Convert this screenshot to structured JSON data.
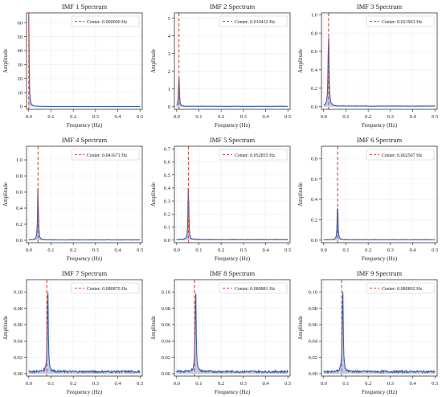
{
  "colors": {
    "spectrum_line": "#3b5fa8",
    "spectrum_fill": "#4a6fbf",
    "center_line": "#d04a3a",
    "axes": "#333333",
    "grid": "#e9eef5"
  },
  "chart_data": [
    {
      "type": "area",
      "title": "IMF 1 Spectrum",
      "xlabel": "Frequency (Hz)",
      "ylabel": "Amplitude",
      "legend": "Center: 0.000000 Hz",
      "legend_position": "top-right",
      "center_frequency": 0.0,
      "xlim": [
        -0.01,
        0.51
      ],
      "ylim": [
        -2,
        67
      ],
      "xticks": [
        0.0,
        0.1,
        0.2,
        0.3,
        0.4,
        0.5
      ],
      "xtick_labels": [
        "0.0",
        "0.1",
        "0.2",
        "0.3",
        "0.4",
        "0.5"
      ],
      "yticks": [
        0,
        10,
        20,
        30,
        40,
        50,
        60
      ],
      "ytick_labels": [
        "0",
        "10",
        "20",
        "30",
        "40",
        "50",
        "60"
      ],
      "peak": {
        "frequency": 0.0,
        "amplitude": 65,
        "width": 0.004
      },
      "noise_floor": 0.05,
      "grid": true
    },
    {
      "type": "area",
      "title": "IMF 2 Spectrum",
      "xlabel": "Frequency (Hz)",
      "ylabel": "Amplitude",
      "legend": "Center: 0.010432 Hz",
      "legend_position": "top-right",
      "center_frequency": 0.010432,
      "xlim": [
        -0.01,
        0.51
      ],
      "ylim": [
        -0.15,
        5.3
      ],
      "xticks": [
        0.0,
        0.1,
        0.2,
        0.3,
        0.4,
        0.5
      ],
      "xtick_labels": [
        "0.0",
        "0.1",
        "0.2",
        "0.3",
        "0.4",
        "0.5"
      ],
      "yticks": [
        0,
        1,
        2,
        3,
        4,
        5
      ],
      "ytick_labels": [
        "0",
        "1",
        "2",
        "3",
        "4",
        "5"
      ],
      "peak": {
        "frequency": 0.0105,
        "amplitude": 1.9,
        "width": 0.004
      },
      "noise_floor": 0.02,
      "grid": true
    },
    {
      "type": "area",
      "title": "IMF 3 Spectrum",
      "xlabel": "Frequency (Hz)",
      "ylabel": "Amplitude",
      "legend": "Center: 0.021963 Hz",
      "legend_position": "top-right",
      "center_frequency": 0.021963,
      "xlim": [
        -0.01,
        0.51
      ],
      "ylim": [
        -0.03,
        1.02
      ],
      "xticks": [
        0.0,
        0.1,
        0.2,
        0.3,
        0.4,
        0.5
      ],
      "xtick_labels": [
        "0.0",
        "0.1",
        "0.2",
        "0.3",
        "0.4",
        "0.5"
      ],
      "yticks": [
        0.0,
        0.2,
        0.4,
        0.6,
        0.8,
        1.0
      ],
      "ytick_labels": [
        "0.0",
        "0.2",
        "0.4",
        "0.6",
        "0.8",
        "1.0"
      ],
      "peak": {
        "frequency": 0.022,
        "amplitude": 0.81,
        "width": 0.005
      },
      "noise_floor": 0.005,
      "grid": true
    },
    {
      "type": "area",
      "title": "IMF 4 Spectrum",
      "xlabel": "Frequency (Hz)",
      "ylabel": "Amplitude",
      "legend": "Center: 0.041671 Hz",
      "legend_position": "top-right",
      "center_frequency": 0.041671,
      "xlim": [
        -0.01,
        0.51
      ],
      "ylim": [
        -0.03,
        1.17
      ],
      "xticks": [
        0.0,
        0.1,
        0.2,
        0.3,
        0.4,
        0.5
      ],
      "xtick_labels": [
        "0.0",
        "0.1",
        "0.2",
        "0.3",
        "0.4",
        "0.5"
      ],
      "yticks": [
        0.0,
        0.2,
        0.4,
        0.6,
        0.8,
        1.0
      ],
      "ytick_labels": [
        "0.0",
        "0.2",
        "0.4",
        "0.6",
        "0.8",
        "1.0"
      ],
      "peak": {
        "frequency": 0.0415,
        "amplitude": 0.7,
        "width": 0.004
      },
      "noise_floor": 0.005,
      "grid": true
    },
    {
      "type": "area",
      "title": "IMF 5 Spectrum",
      "xlabel": "Frequency (Hz)",
      "ylabel": "Amplitude",
      "legend": "Center: 0.052855 Hz",
      "legend_position": "top-right",
      "center_frequency": 0.052855,
      "xlim": [
        -0.01,
        0.51
      ],
      "ylim": [
        -0.02,
        0.72
      ],
      "xticks": [
        0.0,
        0.1,
        0.2,
        0.3,
        0.4,
        0.5
      ],
      "xtick_labels": [
        "0.0",
        "0.1",
        "0.2",
        "0.3",
        "0.4",
        "0.5"
      ],
      "yticks": [
        0.0,
        0.1,
        0.2,
        0.3,
        0.4,
        0.5,
        0.6,
        0.7
      ],
      "ytick_labels": [
        "0.0",
        "0.1",
        "0.2",
        "0.3",
        "0.4",
        "0.5",
        "0.6",
        "0.7"
      ],
      "peak": {
        "frequency": 0.053,
        "amplitude": 0.45,
        "width": 0.004
      },
      "noise_floor": 0.004,
      "grid": true
    },
    {
      "type": "area",
      "title": "IMF 6 Spectrum",
      "xlabel": "Frequency (Hz)",
      "ylabel": "Amplitude",
      "legend": "Center: 0.062507 Hz",
      "legend_position": "top-right",
      "center_frequency": 0.062507,
      "xlim": [
        -0.01,
        0.51
      ],
      "ylim": [
        -0.025,
        0.92
      ],
      "xticks": [
        0.0,
        0.1,
        0.2,
        0.3,
        0.4,
        0.5
      ],
      "xtick_labels": [
        "0.0",
        "0.1",
        "0.2",
        "0.3",
        "0.4",
        "0.5"
      ],
      "yticks": [
        0.0,
        0.2,
        0.4,
        0.6,
        0.8
      ],
      "ytick_labels": [
        "0.0",
        "0.2",
        "0.4",
        "0.6",
        "0.8"
      ],
      "peak": {
        "frequency": 0.0625,
        "amplitude": 0.4,
        "width": 0.004
      },
      "noise_floor": 0.004,
      "grid": true
    },
    {
      "type": "area",
      "title": "IMF 7 Spectrum",
      "xlabel": "Frequency (Hz)",
      "ylabel": "Amplitude",
      "legend": "Center: 0.080870 Hz",
      "legend_position": "top-right",
      "center_frequency": 0.08087,
      "xlim": [
        -0.01,
        0.51
      ],
      "ylim": [
        -0.003,
        0.115
      ],
      "xticks": [
        0.0,
        0.1,
        0.2,
        0.3,
        0.4,
        0.5
      ],
      "xtick_labels": [
        "0.0",
        "0.1",
        "0.2",
        "0.3",
        "0.4",
        "0.5"
      ],
      "yticks": [
        0.0,
        0.02,
        0.04,
        0.06,
        0.08,
        0.1
      ],
      "ytick_labels": [
        "0.00",
        "0.02",
        "0.04",
        "0.06",
        "0.08",
        "0.10"
      ],
      "peak": {
        "frequency": 0.0855,
        "amplitude": 0.108,
        "width": 0.005
      },
      "noise_floor": 0.0025,
      "grid": true
    },
    {
      "type": "area",
      "title": "IMF 8 Spectrum",
      "xlabel": "Frequency (Hz)",
      "ylabel": "Amplitude",
      "legend": "Center: 0.080881 Hz",
      "legend_position": "top-right",
      "center_frequency": 0.080881,
      "xlim": [
        -0.01,
        0.51
      ],
      "ylim": [
        -0.003,
        0.115
      ],
      "xticks": [
        0.0,
        0.1,
        0.2,
        0.3,
        0.4,
        0.5
      ],
      "xtick_labels": [
        "0.0",
        "0.1",
        "0.2",
        "0.3",
        "0.4",
        "0.5"
      ],
      "yticks": [
        0.0,
        0.02,
        0.04,
        0.06,
        0.08,
        0.1
      ],
      "ytick_labels": [
        "0.00",
        "0.02",
        "0.04",
        "0.06",
        "0.08",
        "0.10"
      ],
      "peak": {
        "frequency": 0.0855,
        "amplitude": 0.108,
        "width": 0.005
      },
      "noise_floor": 0.0025,
      "grid": true
    },
    {
      "type": "area",
      "title": "IMF 9 Spectrum",
      "xlabel": "Frequency (Hz)",
      "ylabel": "Amplitude",
      "legend": "Center: 0.080892 Hz",
      "legend_position": "top-right",
      "center_frequency": 0.080892,
      "xlim": [
        -0.01,
        0.51
      ],
      "ylim": [
        -0.003,
        0.115
      ],
      "xticks": [
        0.0,
        0.1,
        0.2,
        0.3,
        0.4,
        0.5
      ],
      "xtick_labels": [
        "0.0",
        "0.1",
        "0.2",
        "0.3",
        "0.4",
        "0.5"
      ],
      "yticks": [
        0.0,
        0.02,
        0.04,
        0.06,
        0.08,
        0.1
      ],
      "ytick_labels": [
        "0.00",
        "0.02",
        "0.04",
        "0.06",
        "0.08",
        "0.10"
      ],
      "peak": {
        "frequency": 0.0855,
        "amplitude": 0.108,
        "width": 0.005
      },
      "noise_floor": 0.0025,
      "grid": true
    }
  ]
}
